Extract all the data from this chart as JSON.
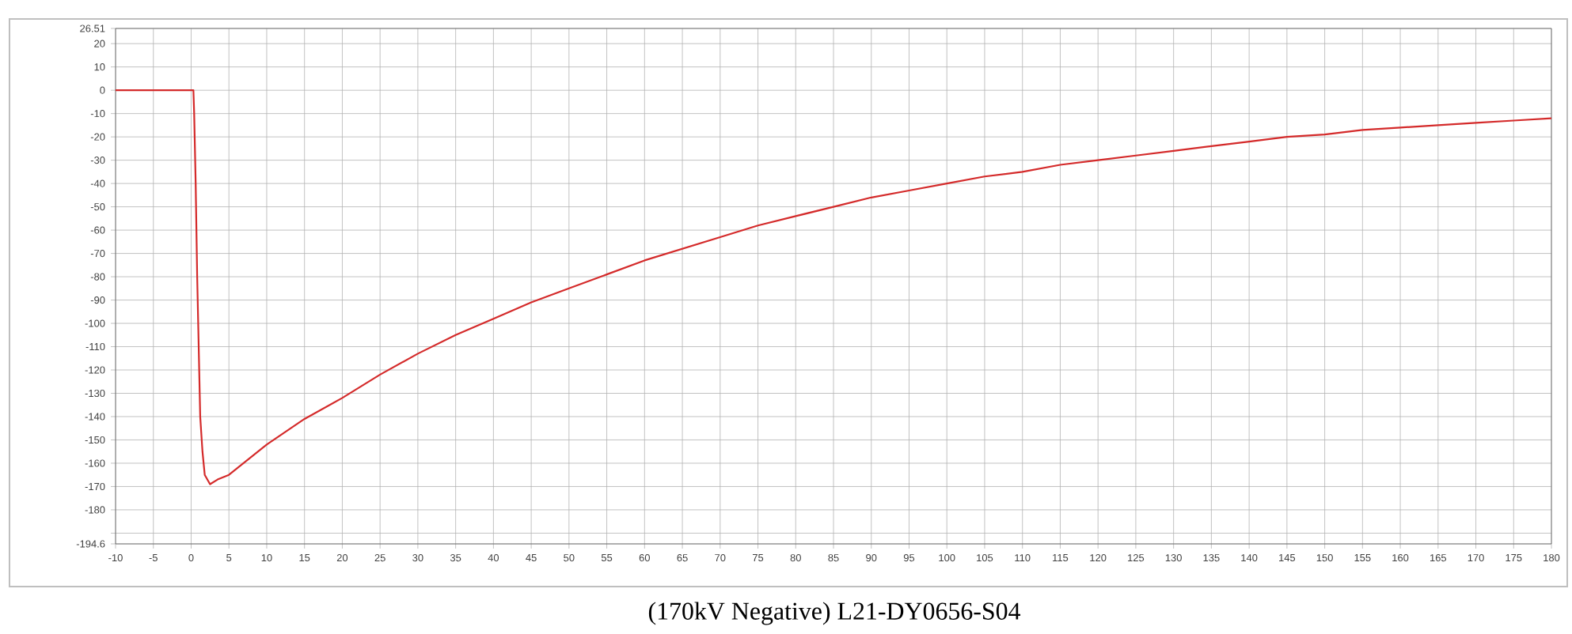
{
  "chart_data": {
    "type": "line",
    "title": "(170kV Negative) L21-DY0656-S04",
    "x": [
      -10,
      -5,
      0,
      0.3,
      0.4,
      0.6,
      0.8,
      1.0,
      1.2,
      1.5,
      1.8,
      2.5,
      3.5,
      5,
      10,
      15,
      20,
      25,
      30,
      35,
      40,
      45,
      50,
      55,
      60,
      65,
      70,
      75,
      80,
      85,
      90,
      95,
      100,
      105,
      110,
      115,
      120,
      125,
      130,
      135,
      140,
      145,
      150,
      155,
      160,
      165,
      170,
      175,
      180
    ],
    "series": [
      {
        "color": "#d42a2a",
        "values": [
          0,
          0,
          0,
          0,
          -10,
          -40,
          -80,
          -110,
          -140,
          -155,
          -165,
          -169,
          -167,
          -165,
          -152,
          -141,
          -132,
          -122,
          -113,
          -105,
          -98,
          -91,
          -85,
          -79,
          -73,
          -68,
          -63,
          -58,
          -54,
          -50,
          -46,
          -43,
          -40,
          -37,
          -35,
          -32,
          -30,
          -28,
          -26,
          -24,
          -22,
          -20,
          -19,
          -17,
          -16,
          -15,
          -14,
          -13,
          -12
        ]
      }
    ],
    "xlim": [
      -10,
      180
    ],
    "xticks": [
      -10,
      -5,
      0,
      5,
      10,
      15,
      20,
      25,
      30,
      35,
      40,
      45,
      50,
      55,
      60,
      65,
      70,
      75,
      80,
      85,
      90,
      95,
      100,
      105,
      110,
      115,
      120,
      125,
      130,
      135,
      140,
      145,
      150,
      155,
      160,
      165,
      170,
      175,
      180
    ],
    "ylim": [
      -194.6,
      26.51
    ],
    "yticks": [
      -194.6,
      {
        "value": -190,
        "label": null
      },
      -180,
      -170,
      -160,
      -150,
      -140,
      -130,
      -120,
      -110,
      -100,
      -90,
      -80,
      -70,
      -60,
      -50,
      -40,
      -30,
      -20,
      -10,
      0,
      10,
      20,
      26.51
    ],
    "grid": true,
    "marker": "none",
    "line_style": "solid"
  }
}
